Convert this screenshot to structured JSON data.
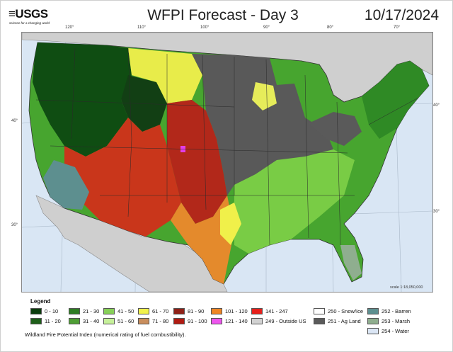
{
  "header": {
    "logo_text": "≡USGS",
    "logo_tagline": "science for a changing world",
    "title": "WFPI Forecast - Day 3",
    "date": "10/17/2024"
  },
  "map": {
    "longitude_ticks": [
      "120°",
      "110°",
      "100°",
      "90°",
      "80°",
      "70°"
    ],
    "latitude_ticks_left": [
      "40°",
      "30°"
    ],
    "latitude_ticks_right": [
      "40°",
      "30°"
    ],
    "scale_text": "scale 1:18,050,000",
    "colors": {
      "water": "#d9e6f4",
      "outside_us": "#cfcfcf",
      "ag_land": "#595959",
      "low": "#0f4d12",
      "mid_green": "#3e9a2d",
      "light_green": "#7dd44a",
      "yellow": "#f0f04a",
      "orange": "#e57b1f",
      "dark_red": "#9b1a14",
      "red": "#d92a1a",
      "magenta": "#e23ee8"
    }
  },
  "legend": {
    "title": "Legend",
    "items": [
      {
        "label": "0 - 10",
        "color": "#0b3d0d"
      },
      {
        "label": "11 - 20",
        "color": "#1e5f1a"
      },
      {
        "label": "21 - 30",
        "color": "#2f7d24"
      },
      {
        "label": "31 - 40",
        "color": "#4f9e35"
      },
      {
        "label": "41 - 50",
        "color": "#86cf57"
      },
      {
        "label": "51 - 60",
        "color": "#c6f09a"
      },
      {
        "label": "61 - 70",
        "color": "#f1f14c"
      },
      {
        "label": "71 - 80",
        "color": "#c98e5d"
      },
      {
        "label": "81 - 90",
        "color": "#8f2118"
      },
      {
        "label": "91 - 100",
        "color": "#b01b12"
      },
      {
        "label": "101 - 120",
        "color": "#ee8524"
      },
      {
        "label": "121 - 140",
        "color": "#ee55ee"
      },
      {
        "label": "141 - 247",
        "color": "#e7201b"
      },
      {
        "label": "249 - Outside US",
        "color": "#d2d2d2"
      },
      {
        "label": "250 - Snow/Ice",
        "color": "#ffffff"
      },
      {
        "label": "251 - Ag Land",
        "color": "#5a5a5a"
      },
      {
        "label": "252 - Barren",
        "color": "#5d8f8f"
      },
      {
        "label": "253 - Marsh",
        "color": "#8fae8f"
      },
      {
        "label": "254 - Water",
        "color": "#dbe6f5"
      }
    ]
  },
  "footnote": "Wildland Fire Potential Index (numerical rating of fuel combustibility)."
}
